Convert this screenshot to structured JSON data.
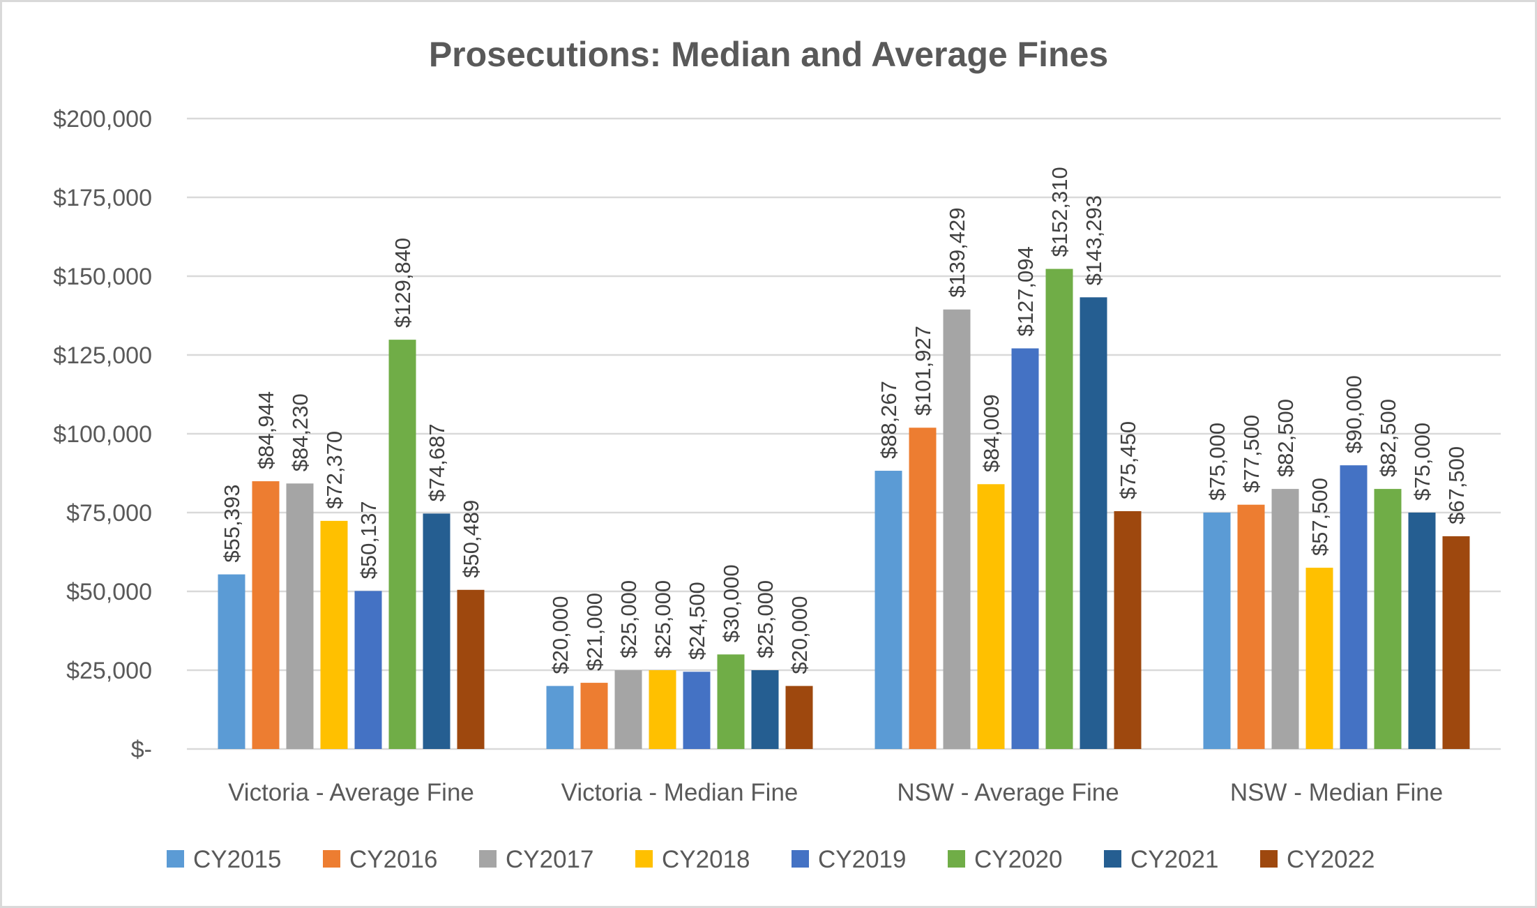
{
  "chart_data": {
    "type": "bar",
    "title": "Prosecutions: Median and Average Fines",
    "xlabel": "",
    "ylabel": "",
    "ylim": [
      0,
      200000
    ],
    "y_ticks": [
      0,
      25000,
      50000,
      75000,
      100000,
      125000,
      150000,
      175000,
      200000
    ],
    "y_tick_labels": [
      "$-",
      "$25,000",
      "$50,000",
      "$75,000",
      "$100,000",
      "$125,000",
      "$150,000",
      "$175,000",
      "$200,000"
    ],
    "grid": true,
    "legend_position": "bottom",
    "categories": [
      "Victoria - Average Fine",
      "Victoria - Median Fine",
      "NSW - Average Fine",
      "NSW - Median Fine"
    ],
    "series": [
      {
        "name": "CY2015",
        "color": "#5b9bd5",
        "values": [
          55393,
          20000,
          88267,
          75000
        ],
        "labels": [
          "$55,393",
          "$20,000",
          "$88,267",
          "$75,000"
        ]
      },
      {
        "name": "CY2016",
        "color": "#ed7d31",
        "values": [
          84944,
          21000,
          101927,
          77500
        ],
        "labels": [
          "$84,944",
          "$21,000",
          "$101,927",
          "$77,500"
        ]
      },
      {
        "name": "CY2017",
        "color": "#a5a5a5",
        "values": [
          84230,
          25000,
          139429,
          82500
        ],
        "labels": [
          "$84,230",
          "$25,000",
          "$139,429",
          "$82,500"
        ]
      },
      {
        "name": "CY2018",
        "color": "#ffc000",
        "values": [
          72370,
          25000,
          84009,
          57500
        ],
        "labels": [
          "$72,370",
          "$25,000",
          "$84,009",
          "$57,500"
        ]
      },
      {
        "name": "CY2019",
        "color": "#4472c4",
        "values": [
          50137,
          24500,
          127094,
          90000
        ],
        "labels": [
          "$50,137",
          "$24,500",
          "$127,094",
          "$90,000"
        ]
      },
      {
        "name": "CY2020",
        "color": "#70ad47",
        "values": [
          129840,
          30000,
          152310,
          82500
        ],
        "labels": [
          "$129,840",
          "$30,000",
          "$152,310",
          "$82,500"
        ]
      },
      {
        "name": "CY2021",
        "color": "#255e91",
        "values": [
          74687,
          25000,
          143293,
          75000
        ],
        "labels": [
          "$74,687",
          "$25,000",
          "$143,293",
          "$75,000"
        ]
      },
      {
        "name": "CY2022",
        "color": "#9e480e",
        "values": [
          50489,
          20000,
          75450,
          67500
        ],
        "labels": [
          "$50,489",
          "$20,000",
          "$75,450",
          "$67,500"
        ]
      }
    ]
  }
}
